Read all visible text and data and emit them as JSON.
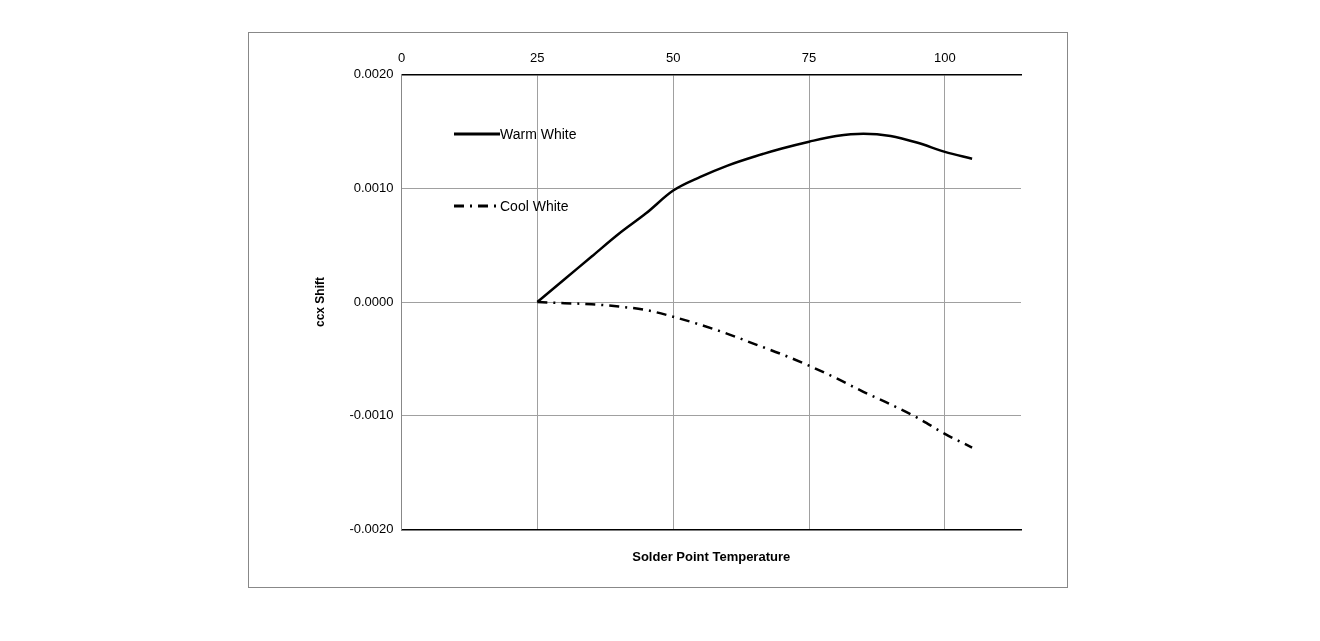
{
  "chart_data": {
    "type": "line",
    "xlabel": "Solder Point Temperature",
    "ylabel": "ccx Shift",
    "xlim": [
      0,
      114
    ],
    "xticks": [
      0,
      25,
      50,
      75,
      100
    ],
    "ylim": [
      -0.002,
      0.002
    ],
    "yticks": [
      {
        "value": -0.002,
        "label": "-0.0020"
      },
      {
        "value": -0.001,
        "label": "-0.0010"
      },
      {
        "value": 0,
        "label": "0.0000"
      },
      {
        "value": 0.001,
        "label": "0.0010"
      },
      {
        "value": 0.002,
        "label": "0.0020"
      }
    ],
    "grid": true,
    "legend": "top left",
    "marker": "none",
    "series": [
      {
        "name": "Warm White",
        "color": "#000000",
        "line_style": "solid",
        "x": [
          25,
          30,
          35,
          40,
          45,
          50,
          55,
          60,
          65,
          70,
          75,
          80,
          85,
          90,
          95,
          100,
          105
        ],
        "values": [
          0,
          0.0002,
          0.0004,
          0.0006,
          0.00078,
          0.00098,
          0.0011,
          0.0012,
          0.00128,
          0.00135,
          0.00141,
          0.00146,
          0.00148,
          0.00146,
          0.0014,
          0.00132,
          0.00126
        ]
      },
      {
        "name": "Cool White",
        "color": "#000000",
        "line_style": "dashed",
        "x": [
          25,
          30,
          35,
          40,
          45,
          50,
          55,
          60,
          65,
          70,
          75,
          80,
          85,
          90,
          95,
          100,
          105
        ],
        "values": [
          0,
          -1e-05,
          -2e-05,
          -4e-05,
          -7e-05,
          -0.00013,
          -0.0002,
          -0.00028,
          -0.00037,
          -0.00046,
          -0.00056,
          -0.00067,
          -0.00079,
          -0.0009,
          -0.00102,
          -0.00116,
          -0.00128
        ]
      }
    ]
  }
}
